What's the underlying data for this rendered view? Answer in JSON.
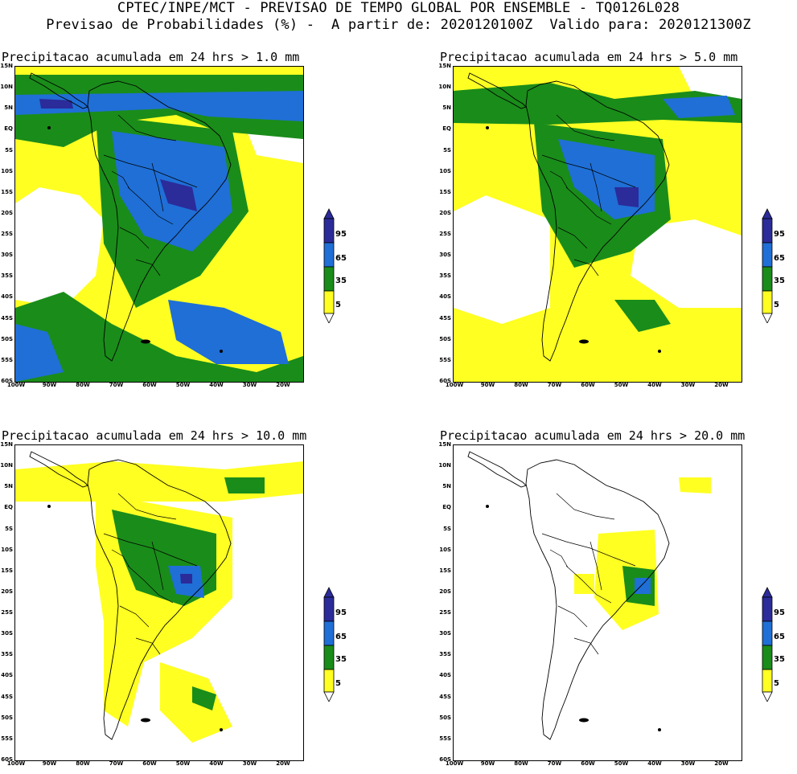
{
  "header": {
    "line1": "CPTEC/INPE/MCT - PREVISAO DE TEMPO GLOBAL POR ENSEMBLE - TQ0126L028",
    "line2": "Previsao de Probabilidades (%) -  A partir de: 2020120100Z  Valido para: 2020121300Z"
  },
  "lat_labels": [
    "15N",
    "10N",
    "5N",
    "EQ",
    "5S",
    "10S",
    "15S",
    "20S",
    "25S",
    "30S",
    "35S",
    "40S",
    "45S",
    "50S",
    "55S",
    "60S"
  ],
  "lon_labels": [
    "100W",
    "90W",
    "80W",
    "70W",
    "60W",
    "50W",
    "40W",
    "30W",
    "20W"
  ],
  "colorbar": {
    "levels": [
      "95",
      "65",
      "35",
      "5"
    ],
    "colors": {
      "c95": "#2b2b9a",
      "c65": "#1f6fd6",
      "c35": "#1a8c1a",
      "c5": "#ffff22",
      "c0": "#ffffff"
    }
  },
  "panels": [
    {
      "title": "Precipitacao acumulada em 24 hrs > 1.0 mm"
    },
    {
      "title": "Precipitacao acumulada em 24 hrs > 5.0 mm"
    },
    {
      "title": "Precipitacao acumulada em 24 hrs > 10.0 mm"
    },
    {
      "title": "Precipitacao acumulada em 24 hrs > 20.0 mm"
    }
  ]
}
